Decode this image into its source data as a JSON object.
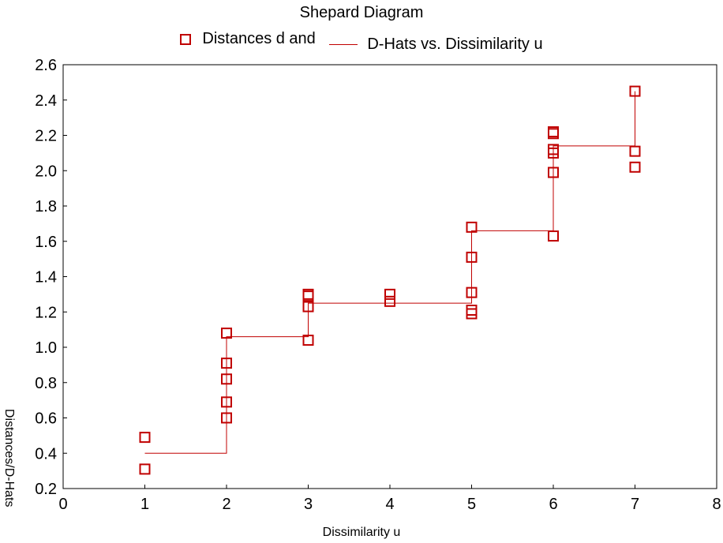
{
  "chart_data": {
    "type": "scatter",
    "title": "Shepard Diagram",
    "xlabel": "Dissimilarity u",
    "ylabel": "Distances/D-Hats",
    "xlim": [
      0,
      8
    ],
    "ylim": [
      0.2,
      2.6
    ],
    "x_ticks": [
      "0",
      "1",
      "2",
      "3",
      "4",
      "5",
      "6",
      "7",
      "8"
    ],
    "y_ticks": [
      "0.2",
      "0.4",
      "0.6",
      "0.8",
      "1.0",
      "1.2",
      "1.4",
      "1.6",
      "1.8",
      "2.0",
      "2.2",
      "2.4",
      "2.6"
    ],
    "grid": false,
    "legend_position": "top",
    "colors": {
      "series": "#c00000"
    },
    "series": [
      {
        "name": "Distances d and",
        "kind": "scatter",
        "marker": "square",
        "points": [
          [
            1,
            0.49
          ],
          [
            1,
            0.31
          ],
          [
            2,
            1.08
          ],
          [
            2,
            0.91
          ],
          [
            2,
            0.82
          ],
          [
            2,
            0.69
          ],
          [
            2,
            0.6
          ],
          [
            3,
            1.3
          ],
          [
            3,
            1.29
          ],
          [
            3,
            1.23
          ],
          [
            3,
            1.04
          ],
          [
            4,
            1.3
          ],
          [
            4,
            1.26
          ],
          [
            5,
            1.68
          ],
          [
            5,
            1.51
          ],
          [
            5,
            1.31
          ],
          [
            5,
            1.21
          ],
          [
            5,
            1.19
          ],
          [
            6,
            2.22
          ],
          [
            6,
            2.21
          ],
          [
            6,
            2.12
          ],
          [
            6,
            2.1
          ],
          [
            6,
            1.99
          ],
          [
            6,
            1.63
          ],
          [
            7,
            2.45
          ],
          [
            7,
            2.11
          ],
          [
            7,
            2.02
          ]
        ]
      },
      {
        "name": "D-Hats vs. Dissimilarity u",
        "kind": "step",
        "points": [
          [
            1,
            0.4
          ],
          [
            2,
            0.4
          ],
          [
            2,
            1.06
          ],
          [
            3,
            1.06
          ],
          [
            3,
            1.25
          ],
          [
            4,
            1.25
          ],
          [
            5,
            1.25
          ],
          [
            5,
            1.66
          ],
          [
            6,
            1.66
          ],
          [
            6,
            2.14
          ],
          [
            7,
            2.14
          ],
          [
            7,
            2.45
          ]
        ]
      }
    ]
  }
}
